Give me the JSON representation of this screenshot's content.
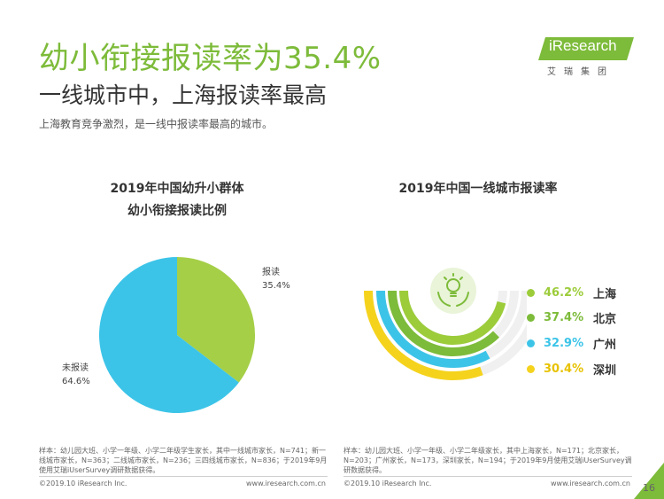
{
  "header": {
    "title": "幼小衔接报读率为35.4%",
    "subtitle": "一线城市中，上海报读率最高",
    "description": "上海教育竞争激烈，是一线中报读率最高的城市。"
  },
  "logo": {
    "brand": "iResearch",
    "cn": "艾瑞集团"
  },
  "colors": {
    "green_dark": "#7dbb3a",
    "green_light": "#a5cf47",
    "blue": "#3cc4e8",
    "yellow": "#f5d31d"
  },
  "chart_data": [
    {
      "type": "pie",
      "title": "2019年中国幼升小群体",
      "subtitle": "幼小衔接报读比例",
      "slices": [
        {
          "label": "报读",
          "value": 35.4,
          "value_text": "35.4%",
          "color": "#a5cf47"
        },
        {
          "label": "未报读",
          "value": 64.6,
          "value_text": "64.6%",
          "color": "#3cc4e8"
        }
      ]
    },
    {
      "type": "bar",
      "title": "2019年中国一线城市报读率",
      "categories": [
        "上海",
        "北京",
        "广州",
        "深圳"
      ],
      "values": [
        46.2,
        37.4,
        32.9,
        30.4
      ],
      "value_texts": [
        "46.2%",
        "37.4%",
        "32.9%",
        "30.4%"
      ],
      "colors": [
        "#9ccc3a",
        "#7dbb3a",
        "#3cc4e8",
        "#f5d31d"
      ]
    }
  ],
  "notes": {
    "left": "样本：幼儿园大班、小学一年级、小学二年级学生家长，其中一线城市家长，N=741；新一线城市家长，N=363；二线城市家长，N=236；三四线城市家长，N=836；于2019年9月使用艾瑞iUserSurvey调研数据获得。",
    "right": "样本：幼儿园大班、小学一年级、小学二年级家长，其中上海家长，N=171；北京家长，N=203；广州家长，N=173，深圳家长，N=194；于2019年9月使用艾瑞iUserSurvey调研数据获得。"
  },
  "footer": {
    "copyright_left": "©2019.10 iResearch Inc.",
    "url_left": "www.iresearch.com.cn",
    "copyright_right": "©2019.10 iResearch Inc.",
    "url_right": "www.iresearch.com.cn",
    "page_number": "16"
  }
}
